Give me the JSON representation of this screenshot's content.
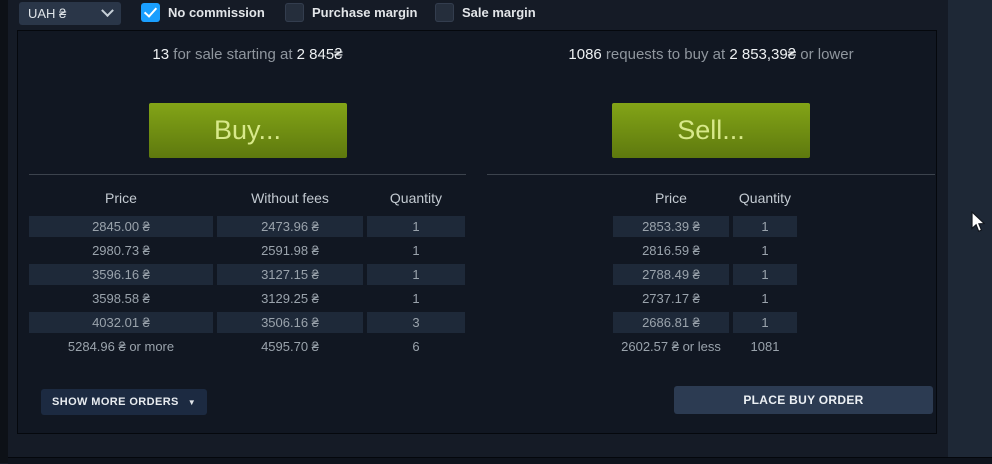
{
  "topbar": {
    "currency_value": "UAH ₴",
    "checkboxes": [
      {
        "label": "No commission",
        "checked": true
      },
      {
        "label": "Purchase margin",
        "checked": false
      },
      {
        "label": "Sale margin",
        "checked": false
      }
    ]
  },
  "buy_section": {
    "headline": {
      "count": "13",
      "mid": " for sale starting at ",
      "price": "2 845₴",
      "end": ""
    },
    "button_label": "Buy...",
    "table": {
      "headers": [
        "Price",
        "Without fees",
        "Quantity"
      ],
      "rows": [
        {
          "price": "2845.00 ₴",
          "without_fees": "2473.96 ₴",
          "quantity": "1",
          "highlighted": true
        },
        {
          "price": "2980.73 ₴",
          "without_fees": "2591.98 ₴",
          "quantity": "1",
          "highlighted": false
        },
        {
          "price": "3596.16 ₴",
          "without_fees": "3127.15 ₴",
          "quantity": "1",
          "highlighted": true
        },
        {
          "price": "3598.58 ₴",
          "without_fees": "3129.25 ₴",
          "quantity": "1",
          "highlighted": false
        },
        {
          "price": "4032.01 ₴",
          "without_fees": "3506.16 ₴",
          "quantity": "3",
          "highlighted": true
        },
        {
          "price": "5284.96 ₴ or more",
          "without_fees": "4595.70 ₴",
          "quantity": "6",
          "highlighted": false
        }
      ]
    },
    "show_more_label": "SHOW MORE ORDERS",
    "show_more_arrow": "▼"
  },
  "sell_section": {
    "headline": {
      "count": "1086",
      "mid": " requests to buy at ",
      "price": "2 853,39₴",
      "end": " or lower"
    },
    "button_label": "Sell...",
    "table": {
      "headers": [
        "Price",
        "Quantity"
      ],
      "rows": [
        {
          "price": "2853.39 ₴",
          "quantity": "1",
          "highlighted": true
        },
        {
          "price": "2816.59 ₴",
          "quantity": "1",
          "highlighted": false
        },
        {
          "price": "2788.49 ₴",
          "quantity": "1",
          "highlighted": true
        },
        {
          "price": "2737.17 ₴",
          "quantity": "1",
          "highlighted": false
        },
        {
          "price": "2686.81 ₴",
          "quantity": "1",
          "highlighted": true
        },
        {
          "price": "2602.57 ₴ or less",
          "quantity": "1081",
          "highlighted": false
        }
      ]
    },
    "place_order_label": "PLACE BUY ORDER"
  }
}
